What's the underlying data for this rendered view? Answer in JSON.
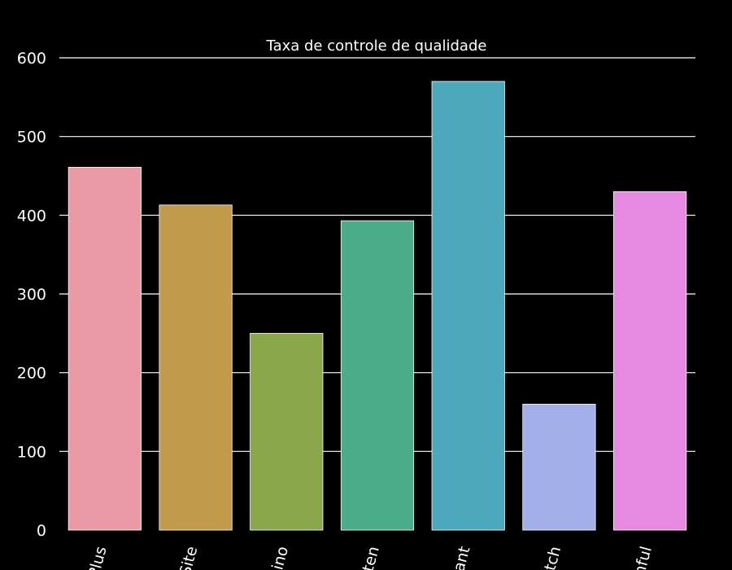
{
  "chart_data": {
    "type": "bar",
    "title": "Taxa de controle de qualidade",
    "xlabel": "",
    "ylabel": "",
    "categories": [
      "Plus",
      "Site",
      "Rino",
      "Sten",
      "Giant",
      "Clutch",
      "Tonful"
    ],
    "values": [
      461,
      413,
      250,
      393,
      570,
      160,
      430
    ],
    "colors": [
      "#e99aa4",
      "#c29a4b",
      "#8aa84b",
      "#4bac8a",
      "#4ca9bb",
      "#a2afe9",
      "#e68ae0"
    ],
    "ylim": [
      0,
      600
    ],
    "yticks": [
      0,
      100,
      200,
      300,
      400,
      500,
      600
    ],
    "grid": true,
    "legend": "none",
    "background": "#000000",
    "text_color": "#ffffff"
  }
}
